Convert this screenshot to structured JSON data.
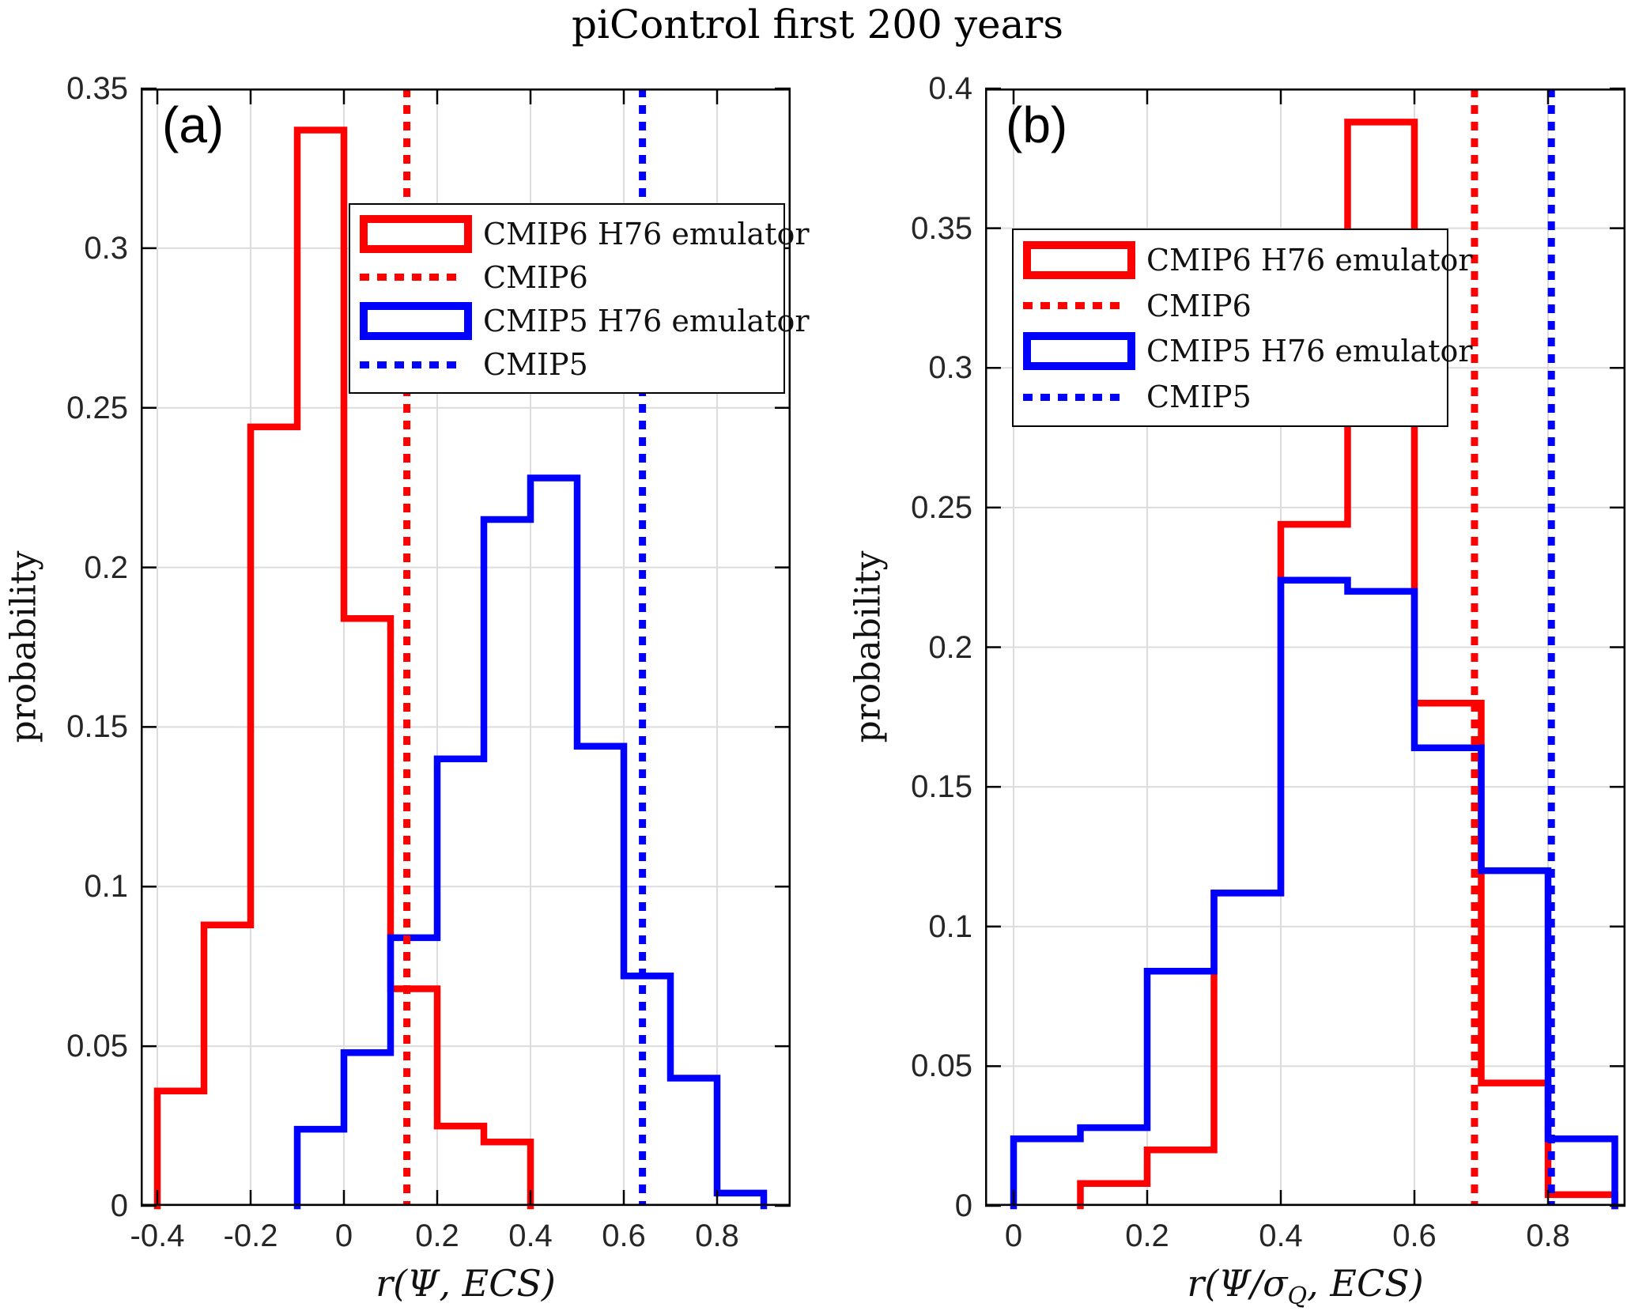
{
  "title": "piControl first 200 years",
  "colors": {
    "cmip6": "#FF0000",
    "cmip5": "#0000FF",
    "grid": "#DCDCDC",
    "frame": "#000000",
    "tick_text": "#262626",
    "background": "#FFFFFF"
  },
  "legend": {
    "entries": [
      {
        "label": "CMIP6 H76 emulator",
        "color": "cmip6",
        "style": "box"
      },
      {
        "label": "CMIP6",
        "color": "cmip6",
        "style": "dotted"
      },
      {
        "label": "CMIP5 H76 emulator",
        "color": "cmip5",
        "style": "box"
      },
      {
        "label": "CMIP5",
        "color": "cmip5",
        "style": "dotted"
      }
    ]
  },
  "chart_data": [
    {
      "type": "bar",
      "subtype": "step-histogram",
      "panel": "(a)",
      "ylabel": "probability",
      "xlabel": {
        "pre": "r(Ψ, ECS)",
        "sub": "",
        "post": ""
      },
      "xlim": [
        -0.44,
        0.96
      ],
      "ylim": [
        0,
        0.35
      ],
      "grid": true,
      "legend_position": "upper-right-inside",
      "xticks": {
        "values": [
          -0.4,
          -0.2,
          0,
          0.2,
          0.4,
          0.6,
          0.8
        ],
        "labels": [
          "-0.4",
          "-0.2",
          "0",
          "0.2",
          "0.4",
          "0.6",
          "0.8"
        ]
      },
      "yticks": {
        "values": [
          0,
          0.05,
          0.1,
          0.15,
          0.2,
          0.25,
          0.3,
          0.35
        ],
        "labels": [
          "0",
          "0.05",
          "0.1",
          "0.15",
          "0.2",
          "0.25",
          "0.3",
          "0.35"
        ]
      },
      "series": [
        {
          "name": "CMIP6 H76 emulator",
          "color": "cmip6",
          "bin_start": -0.4,
          "bin_width": 0.1,
          "values": [
            0.036,
            0.088,
            0.244,
            0.337,
            0.184,
            0.068,
            0.025,
            0.02
          ]
        },
        {
          "name": "CMIP5 H76 emulator",
          "color": "cmip5",
          "bin_start": -0.1,
          "bin_width": 0.1,
          "values": [
            0.024,
            0.048,
            0.084,
            0.14,
            0.215,
            0.228,
            0.144,
            0.072,
            0.04,
            0.004
          ]
        }
      ],
      "vlines": [
        {
          "name": "CMIP6",
          "x": 0.135,
          "color": "cmip6",
          "style": "dotted"
        },
        {
          "name": "CMIP5",
          "x": 0.64,
          "color": "cmip5",
          "style": "dotted"
        }
      ]
    },
    {
      "type": "bar",
      "subtype": "step-histogram",
      "panel": "(b)",
      "ylabel": "probability",
      "xlabel": {
        "pre": "r(Ψ/σ",
        "sub": "Q",
        "post": ", ECS)"
      },
      "xlim": [
        -0.045,
        0.915
      ],
      "ylim": [
        0,
        0.4
      ],
      "grid": true,
      "legend_position": "upper-left-inside",
      "xticks": {
        "values": [
          0,
          0.2,
          0.4,
          0.6,
          0.8
        ],
        "labels": [
          "0",
          "0.2",
          "0.4",
          "0.6",
          "0.8"
        ]
      },
      "yticks": {
        "values": [
          0,
          0.05,
          0.1,
          0.15,
          0.2,
          0.25,
          0.3,
          0.35,
          0.4
        ],
        "labels": [
          "0",
          "0.05",
          "0.1",
          "0.15",
          "0.2",
          "0.25",
          "0.3",
          "0.35",
          "0.4"
        ]
      },
      "series": [
        {
          "name": "CMIP6 H76 emulator",
          "color": "cmip6",
          "bin_start": 0.1,
          "bin_width": 0.1,
          "values": [
            0.008,
            0.02,
            0.112,
            0.244,
            0.388,
            0.18,
            0.044,
            0.004
          ]
        },
        {
          "name": "CMIP5 H76 emulator",
          "color": "cmip5",
          "bin_start": 0.0,
          "bin_width": 0.1,
          "values": [
            0.024,
            0.028,
            0.084,
            0.112,
            0.224,
            0.22,
            0.164,
            0.12,
            0.024
          ]
        }
      ],
      "vlines": [
        {
          "name": "CMIP6",
          "x": 0.69,
          "color": "cmip6",
          "style": "dotted"
        },
        {
          "name": "CMIP5",
          "x": 0.805,
          "color": "cmip5",
          "style": "dotted"
        }
      ]
    }
  ]
}
